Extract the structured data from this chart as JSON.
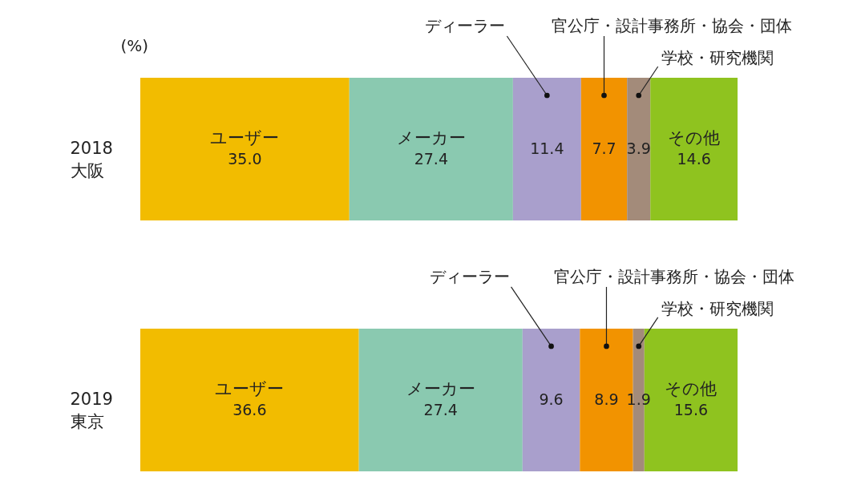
{
  "chart_data": {
    "type": "bar",
    "orientation": "horizontal",
    "stacked": true,
    "ylabel": "(%)",
    "categories": [
      "2018\n大阪",
      "2019\n東京"
    ],
    "series": [
      {
        "name": "ユーザー",
        "color": "#f2bc00",
        "values": [
          35.0,
          36.6
        ],
        "value_labels": [
          "35.0",
          "36.6"
        ]
      },
      {
        "name": "メーカー",
        "color": "#8ac9b0",
        "values": [
          27.4,
          27.4
        ],
        "value_labels": [
          "27.4",
          "27.4"
        ]
      },
      {
        "name": "ディーラー",
        "color": "#a99fcc",
        "values": [
          11.4,
          9.6
        ],
        "value_labels": [
          "11.4",
          "9.6"
        ]
      },
      {
        "name": "官公庁・設計事務所・協会・団体",
        "color": "#f29300",
        "values": [
          7.7,
          8.9
        ],
        "value_labels": [
          "7.7",
          "8.9"
        ]
      },
      {
        "name": "学校・研究機関",
        "color": "#a38b7a",
        "values": [
          3.9,
          1.9
        ],
        "value_labels": [
          "3.9",
          "1.9"
        ]
      },
      {
        "name": "その他",
        "color": "#8fc31f",
        "values": [
          14.6,
          15.6
        ],
        "value_labels": [
          "14.6",
          "15.6"
        ]
      }
    ],
    "xlim": [
      0,
      100
    ]
  }
}
